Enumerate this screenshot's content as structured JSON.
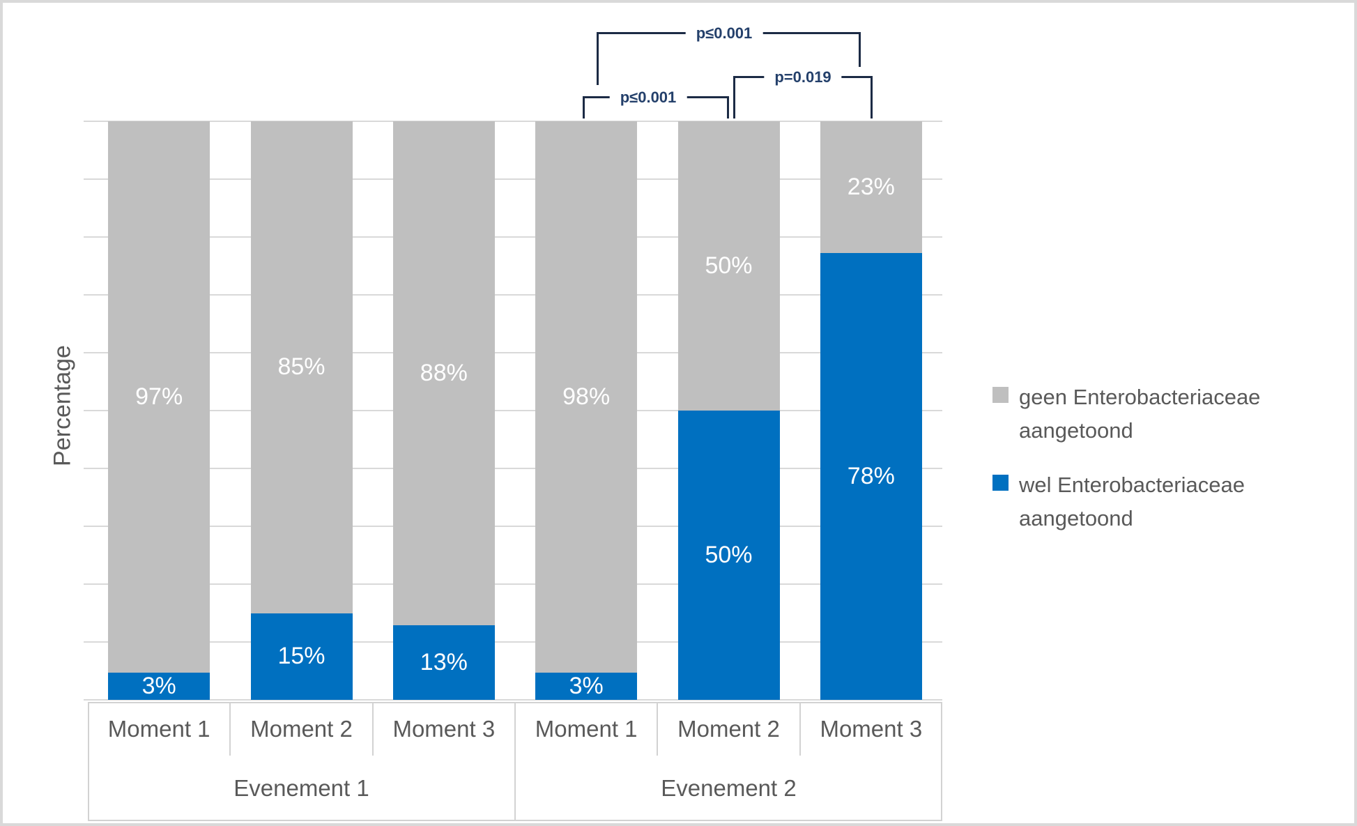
{
  "chart_data": {
    "type": "bar",
    "variant": "100%-stacked-columns",
    "title": "",
    "xlabel": "",
    "ylabel": "Percentage",
    "ylim": [
      0,
      100
    ],
    "gridlines": "horizontal every 10%, no y tick labels",
    "legend_position": "right",
    "categories": [
      "Moment 1",
      "Moment 2",
      "Moment 3",
      "Moment 1",
      "Moment 2",
      "Moment 3"
    ],
    "group_labels": [
      "Evenement 1",
      "Evenement 2"
    ],
    "series": [
      {
        "name": "geen Enterobacteriaceae aangetoond",
        "color": "#bfbfbf",
        "values": [
          97,
          85,
          88,
          98,
          50,
          23
        ],
        "labels": [
          "97%",
          "85%",
          "88%",
          "98%",
          "50%",
          "23%"
        ]
      },
      {
        "name": "wel Enterobacteriaceae aangetoond",
        "color": "#0070c0",
        "values": [
          3,
          15,
          13,
          3,
          50,
          78
        ],
        "labels": [
          "3%",
          "15%",
          "13%",
          "3%",
          "50%",
          "78%"
        ]
      }
    ],
    "significance_brackets": [
      {
        "label": "p≤0.001",
        "from": "Evenement 2 / Moment 1",
        "to": "Evenement 2 / Moment 3"
      },
      {
        "label": "p≤0.001",
        "from": "Evenement 2 / Moment 1",
        "to": "Evenement 2 / Moment 2"
      },
      {
        "label": "p=0.019",
        "from": "Evenement 2 / Moment 2",
        "to": "Evenement 2 / Moment 3"
      }
    ]
  },
  "legend": {
    "items": [
      {
        "label": "geen Enterobacteriaceae aangetoond",
        "color": "#bfbfbf"
      },
      {
        "label": "wel Enterobacteriaceae aangetoond",
        "color": "#0070c0"
      }
    ]
  },
  "colors": {
    "bar_gray": "#bfbfbf",
    "bar_blue": "#0070c0",
    "gridline": "#d9d9d9",
    "axis_text": "#595959",
    "bar_label_text": "#ffffff",
    "bracket_line": "#1c2b45",
    "bracket_text": "#24406b",
    "frame_border": "#d9d9d9",
    "axis_table_border": "#d2d2d2"
  }
}
